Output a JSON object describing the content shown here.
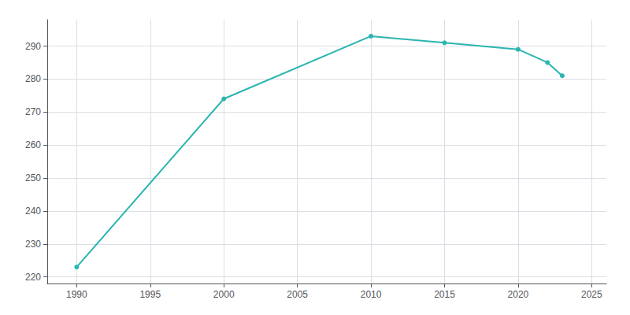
{
  "chart_data": {
    "type": "line",
    "x": [
      1990,
      2000,
      2010,
      2015,
      2020,
      2022,
      2023
    ],
    "values": [
      223,
      274,
      293,
      291,
      289,
      285,
      281
    ],
    "color": "#2ab5b0",
    "marker": "circle",
    "xlim": [
      1988,
      2026
    ],
    "xticks": [
      1990,
      1995,
      2000,
      2005,
      2010,
      2015,
      2020,
      2025
    ],
    "ylim": [
      218,
      298
    ],
    "yticks": [
      220,
      230,
      240,
      250,
      260,
      270,
      280,
      290
    ],
    "grid": true
  }
}
